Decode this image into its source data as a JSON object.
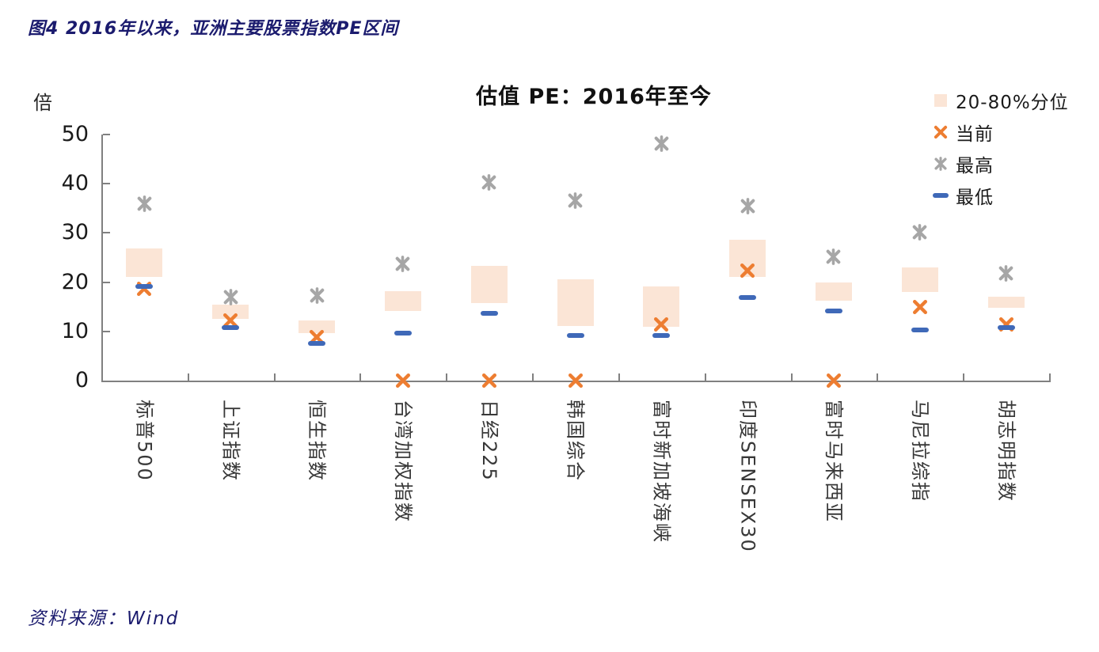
{
  "figure": {
    "title": "图4 2016年以来，亚洲主要股票指数PE区间"
  },
  "source": {
    "label": "资料来源：Wind"
  },
  "colors": {
    "range_box": "#fbe5d6",
    "current_x": "#ed7d31",
    "max_star": "#a6a6a6",
    "min_dash": "#3f69b8",
    "axis": "#808080",
    "heading_navy": "#1b1b6e"
  },
  "chart_data": {
    "type": "bar",
    "variant": "floating range bars (20-80% percentile) with point markers for current / max / min PE",
    "title": "估值 PE：2016年至今",
    "unit_label": "倍",
    "ylim": [
      0,
      50
    ],
    "yticks": [
      0,
      10,
      20,
      30,
      40,
      50
    ],
    "grid": "off",
    "legend_position": "top-right",
    "legend": [
      {
        "label": "20-80%分位",
        "marker": "box",
        "color": "#fbe5d6"
      },
      {
        "label": "当前",
        "marker": "x",
        "color": "#ed7d31"
      },
      {
        "label": "最高",
        "marker": "star",
        "color": "#a6a6a6"
      },
      {
        "label": "最低",
        "marker": "dash",
        "color": "#3f69b8"
      }
    ],
    "categories": [
      "标普500",
      "上证指数",
      "恒生指数",
      "台湾加权指数",
      "日经225",
      "韩国综合",
      "富时新加坡海峡",
      "印度SENSEX30",
      "富时马来西亚",
      "马尼拉综指",
      "胡志明指数"
    ],
    "series": [
      {
        "name": "20-80%分位下限(p20)",
        "values": [
          21.0,
          12.5,
          9.6,
          14.2,
          15.8,
          11.1,
          11.0,
          21.0,
          16.3,
          18.0,
          14.8
        ]
      },
      {
        "name": "20-80%分位上限(p80)",
        "values": [
          26.8,
          15.5,
          12.2,
          18.1,
          23.3,
          20.5,
          19.1,
          28.6,
          20.0,
          23.0,
          17.1
        ]
      },
      {
        "name": "当前",
        "values": [
          18.6,
          12.2,
          8.8,
          0,
          0,
          0,
          11.4,
          22.4,
          0,
          14.9,
          11.4
        ]
      },
      {
        "name": "最高",
        "values": [
          36.0,
          17.0,
          17.3,
          23.7,
          40.2,
          36.5,
          48.2,
          35.5,
          25.1,
          30.2,
          21.8
        ]
      },
      {
        "name": "最低",
        "values": [
          19.2,
          10.8,
          7.5,
          9.6,
          13.7,
          9.1,
          9.2,
          16.9,
          14.1,
          10.3,
          10.7
        ]
      }
    ]
  }
}
